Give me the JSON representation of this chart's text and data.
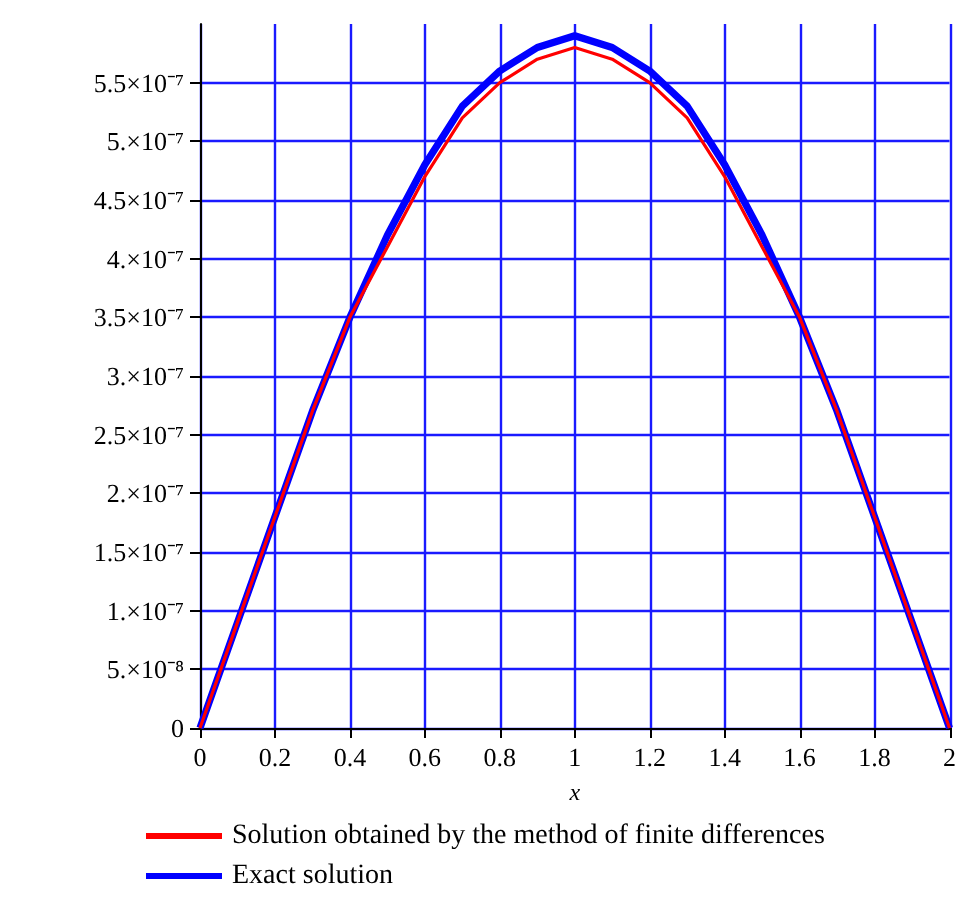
{
  "chart_data": {
    "type": "line",
    "xlabel": "x",
    "x": [
      0,
      0.1,
      0.2,
      0.3,
      0.4,
      0.5,
      0.6,
      0.7,
      0.8,
      0.9,
      1,
      1.1,
      1.2,
      1.3,
      1.4,
      1.5,
      1.6,
      1.7,
      1.8,
      1.9,
      2
    ],
    "series": [
      {
        "name": "Solution obtained by the method of finite differences",
        "color": "#ff0000",
        "values": [
          0,
          9e-08,
          1.8e-07,
          2.7e-07,
          3.5e-07,
          4.1e-07,
          4.7e-07,
          5.2e-07,
          5.5e-07,
          5.7e-07,
          5.8e-07,
          5.7e-07,
          5.5e-07,
          5.2e-07,
          4.7e-07,
          4.1e-07,
          3.5e-07,
          2.7e-07,
          1.8e-07,
          9e-08,
          0
        ]
      },
      {
        "name": "Exact solution",
        "color": "#0000ff",
        "values": [
          0,
          9e-08,
          1.8e-07,
          2.7e-07,
          3.5e-07,
          4.2e-07,
          4.8e-07,
          5.3e-07,
          5.6e-07,
          5.8e-07,
          5.9e-07,
          5.8e-07,
          5.6e-07,
          5.3e-07,
          4.8e-07,
          4.2e-07,
          3.5e-07,
          2.7e-07,
          1.8e-07,
          9e-08,
          0
        ]
      }
    ],
    "xlim": [
      0,
      2
    ],
    "xticks": [
      0,
      0.2,
      0.4,
      0.6,
      0.8,
      1,
      1.2,
      1.4,
      1.6,
      1.8,
      2
    ],
    "ylim": [
      0,
      6e-07
    ],
    "yticks": [
      0,
      {
        "value": 5e-08,
        "label": "5.×10⁻⁸"
      },
      {
        "value": 1e-07,
        "label": "1.×10⁻⁷"
      },
      {
        "value": 1.5e-07,
        "label": "1.5×10⁻⁷"
      },
      {
        "value": 2e-07,
        "label": "2.×10⁻⁷"
      },
      {
        "value": 2.5e-07,
        "label": "2.5×10⁻⁷"
      },
      {
        "value": 3e-07,
        "label": "3.×10⁻⁷"
      },
      {
        "value": 3.5e-07,
        "label": "3.5×10⁻⁷"
      },
      {
        "value": 4e-07,
        "label": "4.×10⁻⁷"
      },
      {
        "value": 4.5e-07,
        "label": "4.5×10⁻⁷"
      },
      {
        "value": 5e-07,
        "label": "5.×10⁻⁷"
      },
      {
        "value": 5.5e-07,
        "label": "5.5×10⁻⁷"
      }
    ],
    "grid": true,
    "legend": "bottom"
  }
}
